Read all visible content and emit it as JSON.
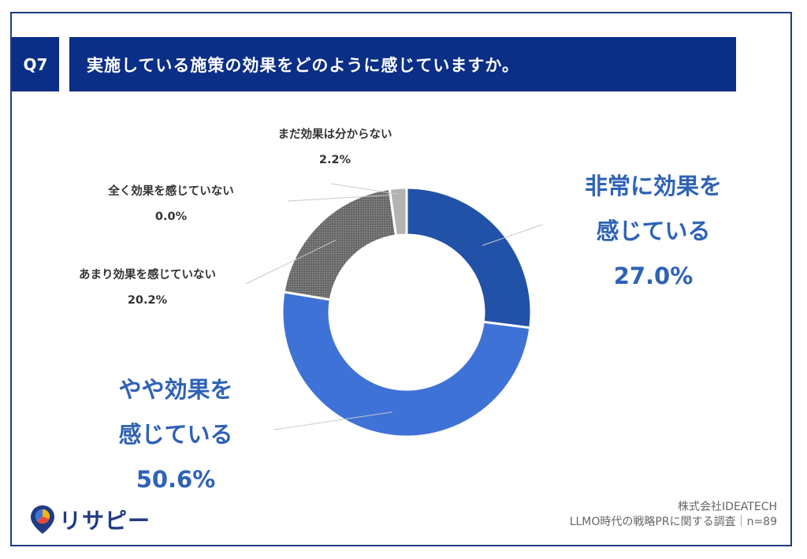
{
  "header": {
    "question_number": "Q7",
    "question_text": "実施している施策の効果をどのように感じていますか。"
  },
  "chart_data": {
    "type": "pie",
    "title": "",
    "slices": [
      {
        "label_lines": [
          "非常に効果を",
          "感じている"
        ],
        "value": 27.0,
        "value_text": "27.0%",
        "color": "#2251a8"
      },
      {
        "label_lines": [
          "やや効果を",
          "感じている"
        ],
        "value": 50.6,
        "value_text": "50.6%",
        "color": "#3f72d6"
      },
      {
        "label_lines": [
          "あまり効果を感じていない"
        ],
        "value": 20.2,
        "value_text": "20.2%",
        "color": "#6b6b6b"
      },
      {
        "label_lines": [
          "全く効果を感じていない"
        ],
        "value": 0.0,
        "value_text": "0.0%",
        "color": "#5a5a5a"
      },
      {
        "label_lines": [
          "まだ効果は分からない"
        ],
        "value": 2.2,
        "value_text": "2.2%",
        "color": "#b3b3b3"
      }
    ]
  },
  "footer": {
    "logo_text": "リサピー",
    "company": "株式会社IDEATECH",
    "survey": "LLMO時代の戦略PRに関する調査｜n=89"
  }
}
